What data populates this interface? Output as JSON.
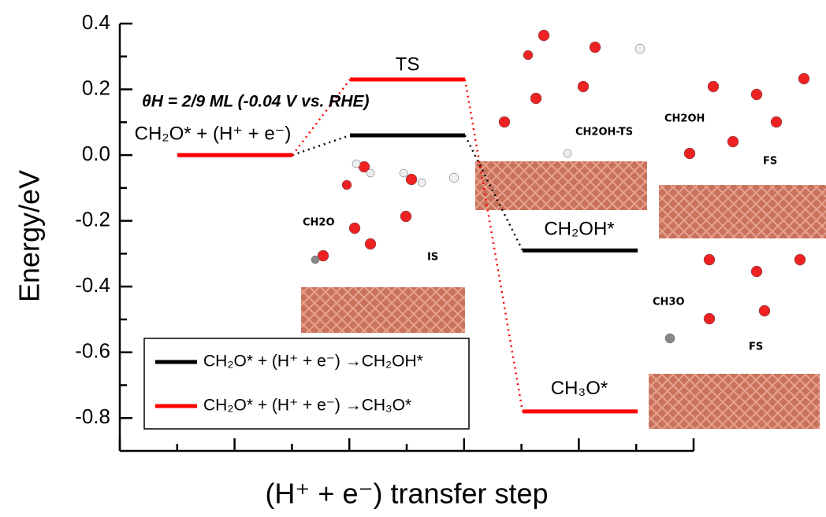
{
  "chart_data": {
    "type": "energy-profile",
    "ylabel": "Energy/eV",
    "xlabel": "(H⁺ + e⁻) transfer step",
    "ylim": [
      -0.9,
      0.4
    ],
    "yticks": [
      0.4,
      0.2,
      {
        "value": 0,
        "label": "0.0"
      },
      -0.2,
      -0.4,
      -0.6,
      -0.8
    ],
    "series": [
      {
        "name": "CH₂O* + (H⁺ + e⁻) →CH₂OH*",
        "color": "#000000",
        "values": [
          0,
          0.06,
          -0.29
        ]
      },
      {
        "name": "CH₂O* + (H⁺ + e⁻) →CH₃O*",
        "color": "#ff0000",
        "values": [
          0,
          0.23,
          -0.78
        ]
      }
    ],
    "annotations": [
      "CH₂O* + (H⁺ + e⁻)",
      "TS",
      "CH₂OH*",
      "CH₃O*",
      "θH = 2/9 ML (-0.04 V vs. RHE)"
    ],
    "image_labels": [
      "CH2O",
      "IS",
      "CH2OH-TS",
      "CH2OH",
      "FS",
      "CH3O",
      "FS"
    ]
  }
}
